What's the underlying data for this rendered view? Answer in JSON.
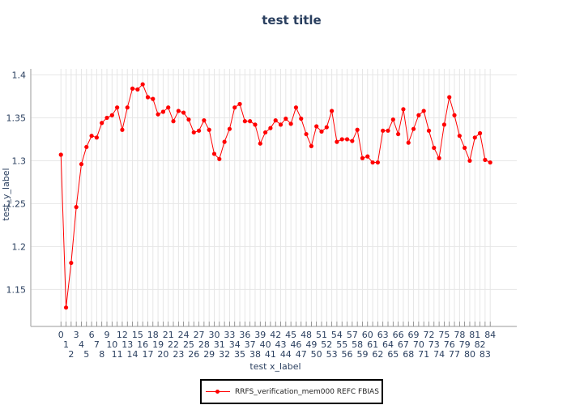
{
  "chart_data": {
    "type": "line",
    "title": "test title",
    "xlabel": "test x_label",
    "ylabel": "test_y_label",
    "x": [
      0,
      1,
      2,
      3,
      4,
      5,
      6,
      7,
      8,
      9,
      10,
      11,
      12,
      13,
      14,
      15,
      16,
      17,
      18,
      19,
      20,
      21,
      22,
      23,
      24,
      25,
      26,
      27,
      28,
      29,
      30,
      31,
      32,
      33,
      34,
      35,
      36,
      37,
      38,
      39,
      40,
      41,
      42,
      43,
      44,
      45,
      46,
      47,
      48,
      49,
      50,
      51,
      52,
      53,
      54,
      55,
      56,
      57,
      58,
      59,
      60,
      61,
      62,
      63,
      64,
      65,
      66,
      67,
      68,
      69,
      70,
      71,
      72,
      73,
      74,
      75,
      76,
      77,
      78,
      79,
      80,
      81,
      82,
      83,
      84
    ],
    "series": [
      {
        "name": "RRFS_verification_mem000 REFC FBIAS",
        "color": "#ff0000",
        "values": [
          1.307,
          1.129,
          1.181,
          1.246,
          1.296,
          1.316,
          1.329,
          1.327,
          1.344,
          1.35,
          1.353,
          1.362,
          1.336,
          1.362,
          1.384,
          1.383,
          1.389,
          1.374,
          1.372,
          1.354,
          1.357,
          1.362,
          1.346,
          1.358,
          1.356,
          1.348,
          1.333,
          1.335,
          1.347,
          1.336,
          1.308,
          1.302,
          1.322,
          1.337,
          1.362,
          1.366,
          1.346,
          1.346,
          1.342,
          1.32,
          1.333,
          1.338,
          1.347,
          1.342,
          1.349,
          1.343,
          1.362,
          1.349,
          1.331,
          1.317,
          1.34,
          1.334,
          1.339,
          1.358,
          1.322,
          1.325,
          1.325,
          1.323,
          1.336,
          1.303,
          1.305,
          1.298,
          1.298,
          1.335,
          1.335,
          1.348,
          1.331,
          1.36,
          1.321,
          1.337,
          1.353,
          1.358,
          1.335,
          1.315,
          1.303,
          1.342,
          1.374,
          1.353,
          1.329,
          1.315,
          1.3,
          1.327,
          1.332,
          1.301,
          1.298
        ]
      }
    ],
    "yticks": [
      1.15,
      1.2,
      1.25,
      1.3,
      1.35,
      1.4
    ],
    "ytick_labels": [
      "1.15",
      "1.2",
      "1.25",
      "1.3",
      "1.35",
      "1.4"
    ],
    "ylim": [
      1.107,
      1.407
    ],
    "xlim": [
      -5.9,
      89.2
    ],
    "grid": true,
    "legend_position": "bottom-center"
  }
}
